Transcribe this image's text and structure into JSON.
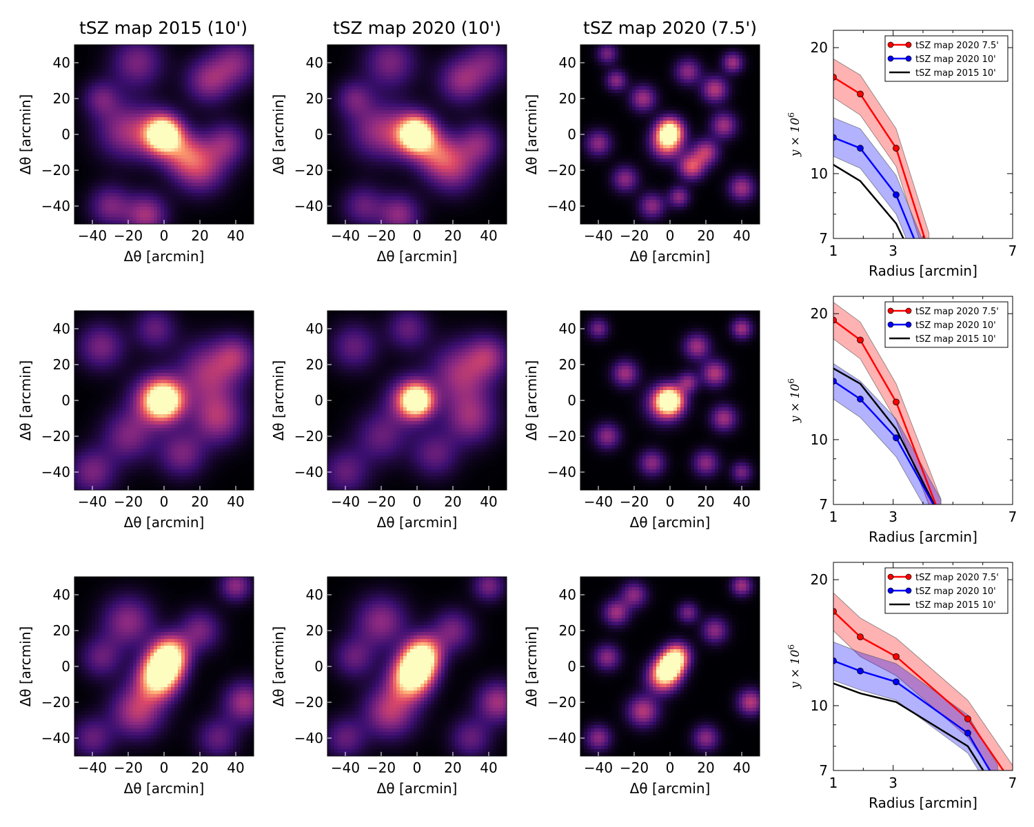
{
  "figure": {
    "column_titles": [
      "tSZ map 2015 (10')",
      "tSZ map 2020 (10')",
      "tSZ map 2020 (7.5')"
    ]
  },
  "colormap": [
    "#000004",
    "#3b0f70",
    "#8c2981",
    "#de4968",
    "#fe9f6d",
    "#fcfdbf"
  ],
  "series_colors": {
    "tSZ map 2020 7.5'": "#ff0000",
    "tSZ map 2020 10'": "#0000ff",
    "tSZ map 2015 10'": "#000000"
  },
  "chart_data": [
    {
      "type": "heatmap",
      "row": 0,
      "col": 0,
      "map": "tSZ map 2015 (10')",
      "title": "tSZ map 2015 (10')",
      "xlabel": "Δθ [arcmin]",
      "ylabel": "Δθ [arcmin]",
      "xlim": [
        -50,
        50
      ],
      "ylim": [
        -50,
        50
      ],
      "xticks": [
        -40,
        -20,
        0,
        20,
        40
      ],
      "yticks": [
        -40,
        -20,
        0,
        20,
        40
      ],
      "colormap": "magma",
      "blobs": [
        [
          0,
          0,
          6,
          1.0
        ],
        [
          -3,
          0,
          9,
          0.55
        ],
        [
          20,
          -18,
          10,
          0.5
        ],
        [
          -22,
          2,
          11,
          0.4
        ],
        [
          25,
          30,
          9,
          0.4
        ],
        [
          -30,
          -40,
          8,
          0.35
        ],
        [
          40,
          40,
          9,
          0.35
        ],
        [
          -15,
          40,
          10,
          0.35
        ],
        [
          10,
          -10,
          8,
          0.4
        ],
        [
          -35,
          20,
          7,
          0.3
        ],
        [
          -10,
          -45,
          8,
          0.45
        ],
        [
          35,
          -5,
          8,
          0.35
        ]
      ]
    },
    {
      "type": "heatmap",
      "row": 0,
      "col": 1,
      "map": "tSZ map 2020 (10')",
      "title": "tSZ map 2020 (10')",
      "xlabel": "Δθ [arcmin]",
      "ylabel": "Δθ [arcmin]",
      "xlim": [
        -50,
        50
      ],
      "ylim": [
        -50,
        50
      ],
      "xticks": [
        -40,
        -20,
        0,
        20,
        40
      ],
      "yticks": [
        -40,
        -20,
        0,
        20,
        40
      ],
      "colormap": "magma",
      "blobs": [
        [
          0,
          0,
          6,
          1.0
        ],
        [
          -3,
          0,
          9,
          0.55
        ],
        [
          20,
          -18,
          10,
          0.45
        ],
        [
          -22,
          2,
          11,
          0.4
        ],
        [
          25,
          30,
          9,
          0.4
        ],
        [
          -30,
          -40,
          8,
          0.3
        ],
        [
          40,
          40,
          9,
          0.3
        ],
        [
          -15,
          40,
          10,
          0.35
        ],
        [
          10,
          -10,
          8,
          0.4
        ],
        [
          -35,
          20,
          7,
          0.3
        ],
        [
          -10,
          -45,
          8,
          0.4
        ],
        [
          35,
          -5,
          8,
          0.35
        ]
      ]
    },
    {
      "type": "heatmap",
      "row": 0,
      "col": 2,
      "map": "tSZ map 2020 (7.5')",
      "xlabel": "Δθ [arcmin]",
      "ylabel": "Δθ [arcmin]",
      "xlim": [
        -50,
        50
      ],
      "ylim": [
        -50,
        50
      ],
      "xticks": [
        -40,
        -20,
        0,
        20,
        40
      ],
      "yticks": [
        -40,
        -20,
        0,
        20,
        40
      ],
      "colormap": "magma",
      "blobs": [
        [
          0,
          2,
          5,
          1.0
        ],
        [
          -2,
          -5,
          6,
          0.7
        ],
        [
          12,
          -18,
          5,
          0.6
        ],
        [
          20,
          -10,
          5,
          0.5
        ],
        [
          -15,
          20,
          5,
          0.45
        ],
        [
          25,
          25,
          5,
          0.5
        ],
        [
          35,
          40,
          4,
          0.45
        ],
        [
          -40,
          -5,
          5,
          0.4
        ],
        [
          -30,
          30,
          4,
          0.4
        ],
        [
          10,
          35,
          5,
          0.4
        ],
        [
          -10,
          -40,
          5,
          0.4
        ],
        [
          40,
          -30,
          5,
          0.45
        ],
        [
          30,
          5,
          5,
          0.45
        ],
        [
          -25,
          -25,
          5,
          0.4
        ],
        [
          5,
          -35,
          4,
          0.4
        ],
        [
          -35,
          45,
          4,
          0.35
        ]
      ]
    },
    {
      "type": "heatmap",
      "row": 1,
      "col": 0,
      "map": "tSZ map 2015 (10')",
      "xlabel": "Δθ [arcmin]",
      "ylabel": "Δθ [arcmin]",
      "xlim": [
        -50,
        50
      ],
      "ylim": [
        -50,
        50
      ],
      "xticks": [
        -40,
        -20,
        0,
        20,
        40
      ],
      "yticks": [
        -40,
        -20,
        0,
        20,
        40
      ],
      "colormap": "magma",
      "blobs": [
        [
          0,
          0,
          7,
          1.0
        ],
        [
          -4,
          0,
          10,
          0.55
        ],
        [
          25,
          15,
          12,
          0.45
        ],
        [
          30,
          -10,
          10,
          0.45
        ],
        [
          -20,
          -20,
          10,
          0.35
        ],
        [
          -35,
          30,
          9,
          0.35
        ],
        [
          10,
          -30,
          9,
          0.35
        ],
        [
          40,
          25,
          8,
          0.35
        ],
        [
          -40,
          -40,
          9,
          0.35
        ],
        [
          -5,
          40,
          8,
          0.3
        ]
      ]
    },
    {
      "type": "heatmap",
      "row": 1,
      "col": 1,
      "map": "tSZ map 2020 (10')",
      "xlabel": "Δθ [arcmin]",
      "ylabel": "Δθ [arcmin]",
      "xlim": [
        -50,
        50
      ],
      "ylim": [
        -50,
        50
      ],
      "xticks": [
        -40,
        -20,
        0,
        20,
        40
      ],
      "yticks": [
        -40,
        -20,
        0,
        20,
        40
      ],
      "colormap": "magma",
      "blobs": [
        [
          0,
          0,
          6,
          1.0
        ],
        [
          -4,
          0,
          9,
          0.5
        ],
        [
          25,
          15,
          12,
          0.45
        ],
        [
          30,
          -10,
          10,
          0.4
        ],
        [
          -20,
          -20,
          10,
          0.3
        ],
        [
          -35,
          30,
          9,
          0.3
        ],
        [
          10,
          -30,
          9,
          0.3
        ],
        [
          40,
          25,
          8,
          0.35
        ],
        [
          -40,
          -40,
          9,
          0.3
        ],
        [
          -5,
          40,
          8,
          0.3
        ]
      ]
    },
    {
      "type": "heatmap",
      "row": 1,
      "col": 2,
      "map": "tSZ map 2020 (7.5')",
      "xlabel": "Δθ [arcmin]",
      "ylabel": "Δθ [arcmin]",
      "xlim": [
        -50,
        50
      ],
      "ylim": [
        -50,
        50
      ],
      "xticks": [
        -40,
        -20,
        0,
        20,
        40
      ],
      "yticks": [
        -40,
        -20,
        0,
        20,
        40
      ],
      "colormap": "magma",
      "blobs": [
        [
          0,
          0,
          5,
          1.0
        ],
        [
          -3,
          -2,
          7,
          0.6
        ],
        [
          25,
          15,
          5,
          0.5
        ],
        [
          30,
          -10,
          5,
          0.45
        ],
        [
          -25,
          15,
          5,
          0.45
        ],
        [
          15,
          30,
          5,
          0.45
        ],
        [
          -35,
          -20,
          5,
          0.4
        ],
        [
          40,
          40,
          4,
          0.45
        ],
        [
          -10,
          -35,
          5,
          0.4
        ],
        [
          20,
          -35,
          5,
          0.4
        ],
        [
          -40,
          40,
          4,
          0.35
        ],
        [
          10,
          10,
          4,
          0.4
        ],
        [
          40,
          -40,
          4,
          0.35
        ]
      ]
    },
    {
      "type": "heatmap",
      "row": 2,
      "col": 0,
      "map": "tSZ map 2015 (10')",
      "xlabel": "Δθ [arcmin]",
      "ylabel": "Δθ [arcmin]",
      "xlim": [
        -50,
        50
      ],
      "ylim": [
        -50,
        50
      ],
      "xticks": [
        -40,
        -20,
        0,
        20,
        40
      ],
      "yticks": [
        -40,
        -20,
        0,
        20,
        40
      ],
      "colormap": "magma",
      "blobs": [
        [
          0,
          0,
          7,
          1.0
        ],
        [
          -4,
          -8,
          8,
          0.8
        ],
        [
          4,
          8,
          7,
          0.75
        ],
        [
          -15,
          -25,
          10,
          0.5
        ],
        [
          -20,
          25,
          10,
          0.4
        ],
        [
          45,
          -20,
          8,
          0.45
        ],
        [
          40,
          45,
          6,
          0.4
        ],
        [
          -40,
          -40,
          8,
          0.3
        ],
        [
          20,
          20,
          8,
          0.35
        ],
        [
          -35,
          5,
          8,
          0.3
        ],
        [
          30,
          -40,
          8,
          0.3
        ]
      ]
    },
    {
      "type": "heatmap",
      "row": 2,
      "col": 1,
      "map": "tSZ map 2020 (10')",
      "xlabel": "Δθ [arcmin]",
      "ylabel": "Δθ [arcmin]",
      "xlim": [
        -50,
        50
      ],
      "ylim": [
        -50,
        50
      ],
      "xticks": [
        -40,
        -20,
        0,
        20,
        40
      ],
      "yticks": [
        -40,
        -20,
        0,
        20,
        40
      ],
      "colormap": "magma",
      "blobs": [
        [
          0,
          0,
          7,
          1.0
        ],
        [
          -4,
          -8,
          8,
          0.8
        ],
        [
          4,
          8,
          7,
          0.75
        ],
        [
          -15,
          -25,
          10,
          0.5
        ],
        [
          -20,
          25,
          10,
          0.4
        ],
        [
          45,
          -20,
          8,
          0.45
        ],
        [
          40,
          45,
          6,
          0.35
        ],
        [
          -40,
          -40,
          8,
          0.3
        ],
        [
          20,
          20,
          8,
          0.35
        ],
        [
          -35,
          5,
          8,
          0.3
        ],
        [
          30,
          -40,
          8,
          0.3
        ]
      ]
    },
    {
      "type": "heatmap",
      "row": 2,
      "col": 2,
      "map": "tSZ map 2020 (7.5')",
      "xlabel": "Δθ [arcmin]",
      "ylabel": "Δθ [arcmin]",
      "xlim": [
        -50,
        50
      ],
      "ylim": [
        -50,
        50
      ],
      "xticks": [
        -40,
        -20,
        0,
        20,
        40
      ],
      "yticks": [
        -40,
        -20,
        0,
        20,
        40
      ],
      "colormap": "magma",
      "blobs": [
        [
          0,
          0,
          5,
          1.0
        ],
        [
          -4,
          -6,
          6,
          0.8
        ],
        [
          4,
          6,
          5,
          0.8
        ],
        [
          -15,
          -25,
          6,
          0.5
        ],
        [
          -30,
          30,
          5,
          0.45
        ],
        [
          45,
          -20,
          5,
          0.5
        ],
        [
          40,
          45,
          4,
          0.45
        ],
        [
          -40,
          -40,
          5,
          0.4
        ],
        [
          25,
          20,
          5,
          0.4
        ],
        [
          -35,
          5,
          5,
          0.4
        ],
        [
          20,
          -40,
          5,
          0.4
        ],
        [
          -20,
          40,
          5,
          0.4
        ],
        [
          10,
          30,
          4,
          0.35
        ]
      ]
    },
    {
      "type": "line",
      "row": 0,
      "xlabel": "Radius [arcmin]",
      "ylabel": "y × 10^6",
      "xlim": [
        1,
        7
      ],
      "ylim": [
        7,
        22
      ],
      "yscale": "log",
      "xticks": [
        1,
        3,
        7
      ],
      "yticks": [
        7,
        10,
        20
      ],
      "legend": "top-right",
      "series": [
        {
          "name": "tSZ map 2020 7.5'",
          "color": "#ff0000",
          "markers": true,
          "x": [
            1,
            1.9,
            3.1,
            4.2
          ],
          "y": [
            17.0,
            15.5,
            11.5,
            6.5
          ],
          "band_lo": [
            15.2,
            13.8,
            10.4,
            5.9
          ],
          "band_hi": [
            18.8,
            17.2,
            12.8,
            7.2
          ]
        },
        {
          "name": "tSZ map 2020 10'",
          "color": "#0000ff",
          "markers": true,
          "x": [
            1,
            1.9,
            3.1,
            4.0
          ],
          "y": [
            12.2,
            11.5,
            8.9,
            6.2
          ],
          "band_lo": [
            11.0,
            10.3,
            8.0,
            5.6
          ],
          "band_hi": [
            13.6,
            12.8,
            9.9,
            6.9
          ]
        },
        {
          "name": "tSZ map 2015 10'",
          "color": "#000000",
          "markers": false,
          "x": [
            1,
            1.9,
            3.1,
            3.7
          ],
          "y": [
            10.5,
            9.6,
            7.6,
            6.2
          ]
        }
      ]
    },
    {
      "type": "line",
      "row": 1,
      "xlabel": "Radius [arcmin]",
      "ylabel": "y × 10^6",
      "xlim": [
        1,
        7
      ],
      "ylim": [
        7,
        22
      ],
      "yscale": "log",
      "xticks": [
        1,
        3,
        7
      ],
      "yticks": [
        7,
        10,
        20
      ],
      "legend": "top-right",
      "series": [
        {
          "name": "tSZ map 2020 7.5'",
          "color": "#ff0000",
          "markers": true,
          "x": [
            1,
            1.9,
            3.1,
            4.6
          ],
          "y": [
            19.3,
            17.3,
            12.3,
            6.5
          ],
          "band_lo": [
            17.4,
            15.6,
            11.1,
            5.9
          ],
          "band_hi": [
            21.3,
            19.1,
            13.6,
            7.2
          ]
        },
        {
          "name": "tSZ map 2020 10'",
          "color": "#0000ff",
          "markers": true,
          "x": [
            1,
            1.9,
            3.1,
            4.6
          ],
          "y": [
            13.8,
            12.5,
            10.1,
            6.5
          ],
          "band_lo": [
            12.5,
            11.3,
            9.1,
            5.9
          ],
          "band_hi": [
            15.2,
            13.8,
            11.2,
            7.2
          ]
        },
        {
          "name": "tSZ map 2015 10'",
          "color": "#000000",
          "markers": false,
          "x": [
            1,
            1.9,
            3.1,
            4.6
          ],
          "y": [
            14.8,
            13.6,
            10.6,
            6.5
          ]
        }
      ]
    },
    {
      "type": "line",
      "row": 2,
      "xlabel": "Radius [arcmin]",
      "ylabel": "y × 10^6",
      "xlim": [
        1,
        7
      ],
      "ylim": [
        7,
        22
      ],
      "yscale": "log",
      "xticks": [
        1,
        3,
        7
      ],
      "yticks": [
        7,
        10,
        20
      ],
      "legend": "top-right",
      "series": [
        {
          "name": "tSZ map 2020 7.5'",
          "color": "#ff0000",
          "markers": true,
          "x": [
            1,
            1.9,
            3.1,
            5.5,
            7.0
          ],
          "y": [
            16.8,
            14.6,
            13.1,
            9.3,
            6.5
          ],
          "band_lo": [
            15.1,
            13.1,
            11.8,
            8.4,
            5.9
          ],
          "band_hi": [
            18.6,
            16.2,
            14.5,
            10.3,
            7.2
          ]
        },
        {
          "name": "tSZ map 2020 10'",
          "color": "#0000ff",
          "markers": true,
          "x": [
            1,
            1.9,
            3.1,
            5.5,
            6.5
          ],
          "y": [
            12.8,
            12.1,
            11.4,
            8.6,
            6.5
          ],
          "band_lo": [
            11.5,
            10.9,
            10.3,
            7.7,
            5.9
          ],
          "band_hi": [
            14.2,
            13.4,
            12.6,
            9.5,
            7.2
          ]
        },
        {
          "name": "tSZ map 2015 10'",
          "color": "#000000",
          "markers": false,
          "x": [
            1,
            1.9,
            3.1,
            5.5,
            6.3
          ],
          "y": [
            11.3,
            10.7,
            10.2,
            8.0,
            6.5
          ]
        }
      ]
    }
  ]
}
